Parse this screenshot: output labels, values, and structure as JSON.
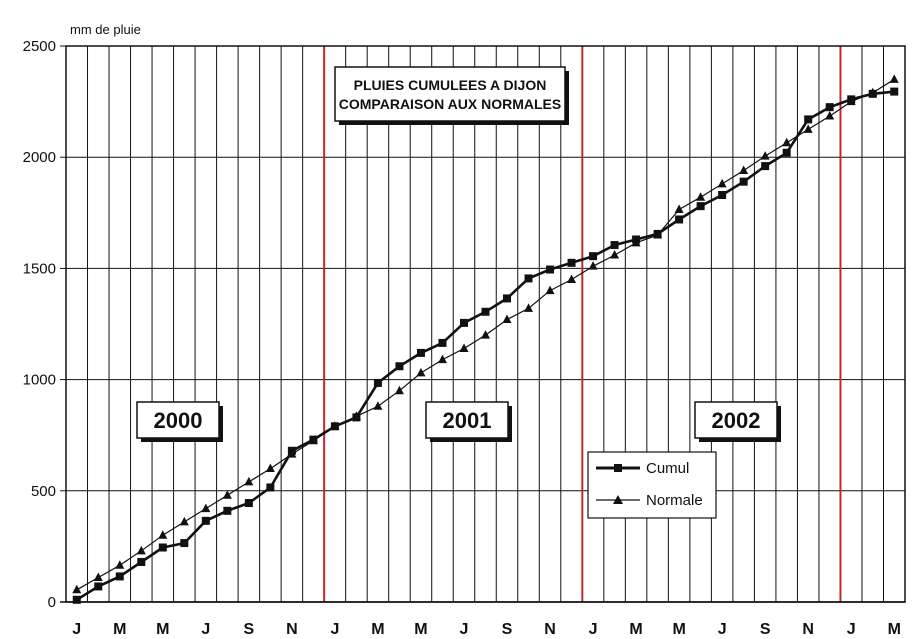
{
  "chart_data": {
    "type": "line",
    "title_lines": [
      "PLUIES CUMULEES A DIJON",
      "COMPARAISON AUX NORMALES"
    ],
    "ylabel": "mm de pluie",
    "ylim": [
      0,
      2500
    ],
    "yticks": [
      0,
      500,
      1000,
      1500,
      2000,
      2500
    ],
    "grid": true,
    "month_labels": [
      "J",
      "M",
      "M",
      "J",
      "S",
      "N",
      "J",
      "M",
      "M",
      "J",
      "S",
      "N",
      "J",
      "M",
      "M",
      "J",
      "S",
      "N",
      "J",
      "M"
    ],
    "year_labels": [
      "2000",
      "2001",
      "2002"
    ],
    "year_separators": [
      {
        "between": "2000-12 / 2001-01",
        "color": "#c0282d"
      },
      {
        "between": "2001-12 / 2002-01",
        "color": "#c0282d"
      },
      {
        "between": "2002-12 / 2003-01",
        "color": "#c0282d"
      }
    ],
    "legend_position": "lower-right",
    "x_months": [
      "2000-01",
      "2000-02",
      "2000-03",
      "2000-04",
      "2000-05",
      "2000-06",
      "2000-07",
      "2000-08",
      "2000-09",
      "2000-10",
      "2000-11",
      "2000-12",
      "2001-01",
      "2001-02",
      "2001-03",
      "2001-04",
      "2001-05",
      "2001-06",
      "2001-07",
      "2001-08",
      "2001-09",
      "2001-10",
      "2001-11",
      "2001-12",
      "2002-01",
      "2002-02",
      "2002-03",
      "2002-04",
      "2002-05",
      "2002-06",
      "2002-07",
      "2002-08",
      "2002-09",
      "2002-10",
      "2002-11",
      "2002-12",
      "2003-01",
      "2003-02",
      "2003-03"
    ],
    "series": [
      {
        "name": "Cumul",
        "marker": "square",
        "line": "bold",
        "values": [
          10,
          70,
          115,
          180,
          245,
          265,
          365,
          410,
          445,
          515,
          680,
          730,
          790,
          830,
          985,
          1060,
          1120,
          1165,
          1255,
          1305,
          1365,
          1455,
          1495,
          1525,
          1555,
          1605,
          1630,
          1655,
          1720,
          1780,
          1830,
          1890,
          1960,
          2020,
          2170,
          2225,
          2260,
          2285,
          2295
        ]
      },
      {
        "name": "Normale",
        "marker": "triangle",
        "line": "thin",
        "values": [
          55,
          110,
          165,
          230,
          300,
          360,
          420,
          480,
          540,
          600,
          665,
          725,
          790,
          835,
          880,
          950,
          1030,
          1090,
          1140,
          1200,
          1270,
          1320,
          1400,
          1450,
          1510,
          1560,
          1615,
          1650,
          1765,
          1820,
          1880,
          1940,
          2005,
          2065,
          2125,
          2185,
          2250,
          2290,
          2350
        ]
      }
    ]
  }
}
